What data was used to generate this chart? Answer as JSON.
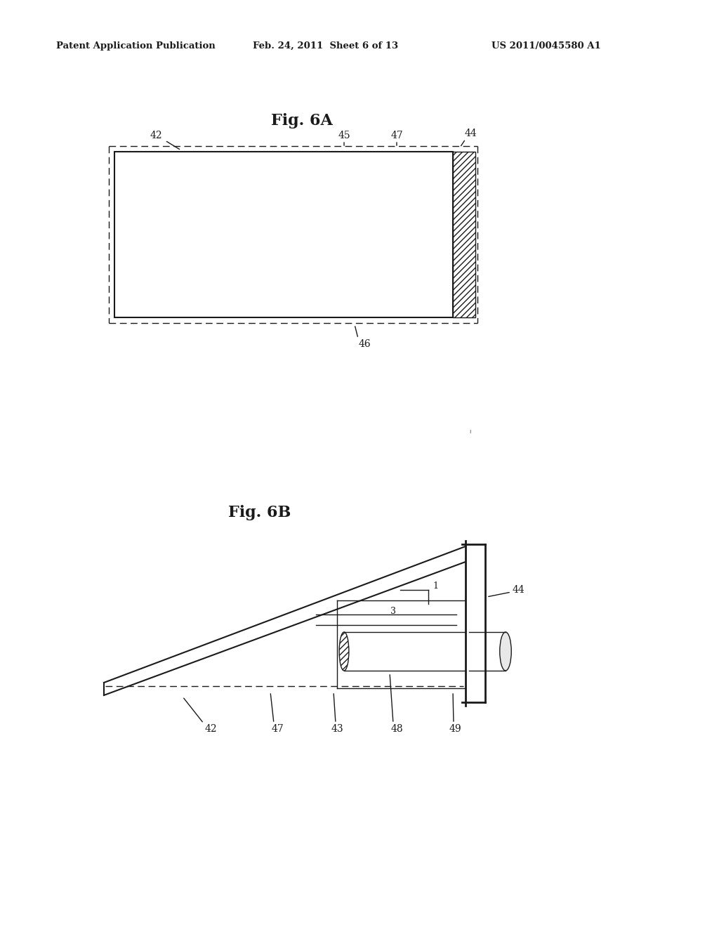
{
  "bg_color": "#ffffff",
  "text_color": "#1a1a1a",
  "header_left": "Patent Application Publication",
  "header_center": "Feb. 24, 2011  Sheet 6 of 13",
  "header_right": "US 2011/0045580 A1",
  "fig6a_title": "Fig. 6A",
  "fig6b_title": "Fig. 6B",
  "line_color": "#1a1a1a"
}
